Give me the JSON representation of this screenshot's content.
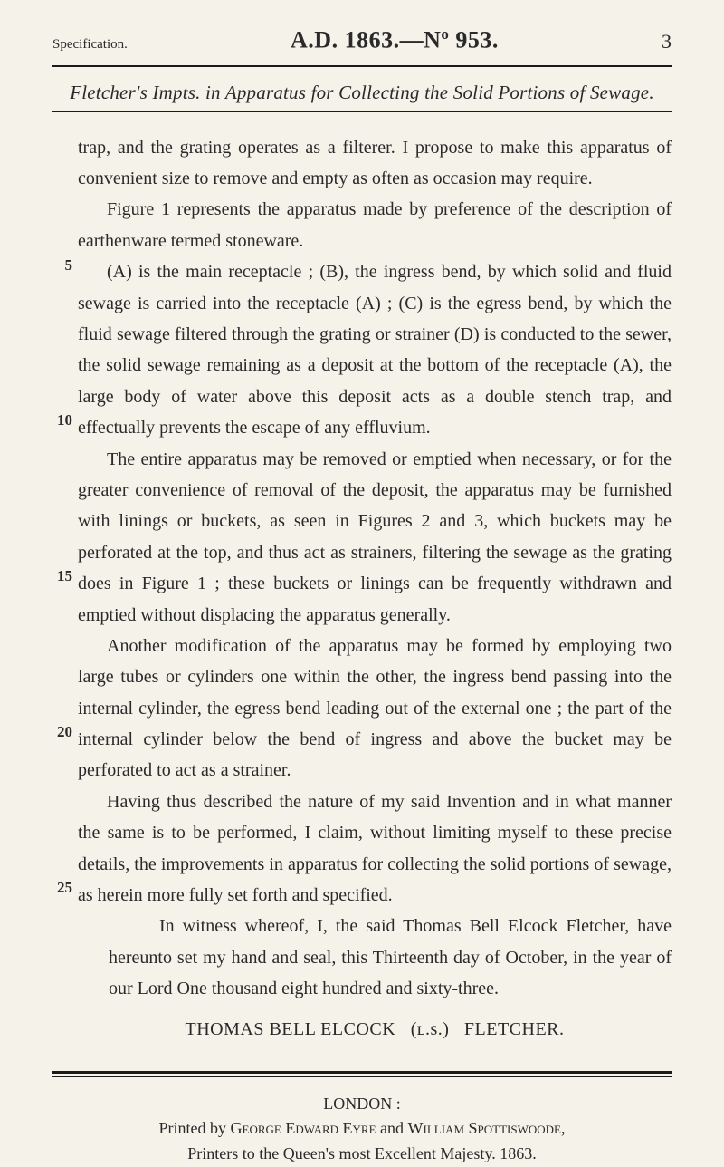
{
  "header": {
    "left": "Specification.",
    "center_prefix": "A.D. 1863.—N",
    "center_sup": "o",
    "center_suffix": " 953.",
    "page": "3"
  },
  "subtitle": "Fletcher's Impts. in Apparatus for Collecting the Solid Portions of Sewage.",
  "line_numbers": {
    "5": "5",
    "10": "10",
    "15": "15",
    "20": "20",
    "25": "25"
  },
  "paragraphs": {
    "p1": "trap, and the grating operates as a filterer. I propose to make this apparatus of convenient size to remove and empty as often as occasion may require.",
    "p2": "Figure 1 represents the apparatus made by preference of the description of earthenware termed stoneware.",
    "p3": "(A) is the main receptacle ; (B), the ingress bend, by which solid and fluid sewage is carried into the receptacle (A) ; (C) is the egress bend, by which the fluid sewage filtered through the grating or strainer (D) is conducted to the sewer, the solid sewage remaining as a deposit at the bottom of the receptacle (A), the large body of water above this deposit acts as a double stench trap, and effectually prevents the escape of any effluvium.",
    "p4": "The entire apparatus may be removed or emptied when necessary, or for the greater convenience of removal of the deposit, the apparatus may be furnished with linings or buckets, as seen in Figures 2 and 3, which buckets may be perforated at the top, and thus act as strainers, filtering the sewage as the grating does in Figure 1 ; these buckets or linings can be frequently withdrawn and emptied without displacing the apparatus generally.",
    "p5": "Another modification of the apparatus may be formed by employing two large tubes or cylinders one within the other, the ingress bend passing into the internal cylinder, the egress bend leading out of the external one ; the part of the internal cylinder below the bend of ingress and above the bucket may be perforated to act as a strainer.",
    "p6": "Having thus described the nature of my said Invention and in what manner the same is to be performed, I claim, without limiting myself to these precise details, the improvements in apparatus for collecting the solid portions of sewage, as herein more fully set forth and specified.",
    "w1": "In witness whereof, I, the said Thomas Bell Elcock Fletcher, have hereunto set my hand and seal, this Thirteenth day of October, in the year of our Lord One thousand eight hundred and sixty-three."
  },
  "signature": {
    "name_a": "THOMAS BELL ELCOCK",
    "ls": "(ʟ.s.)",
    "name_b": "FLETCHER."
  },
  "colophon": {
    "l1": "LONDON :",
    "l2_a": "Printed by ",
    "l2_b": "George Edward Eyre",
    "l2_c": " and ",
    "l2_d": "William Spottiswoode,",
    "l3": "Printers to the Queen's most Excellent Majesty.  1863."
  }
}
